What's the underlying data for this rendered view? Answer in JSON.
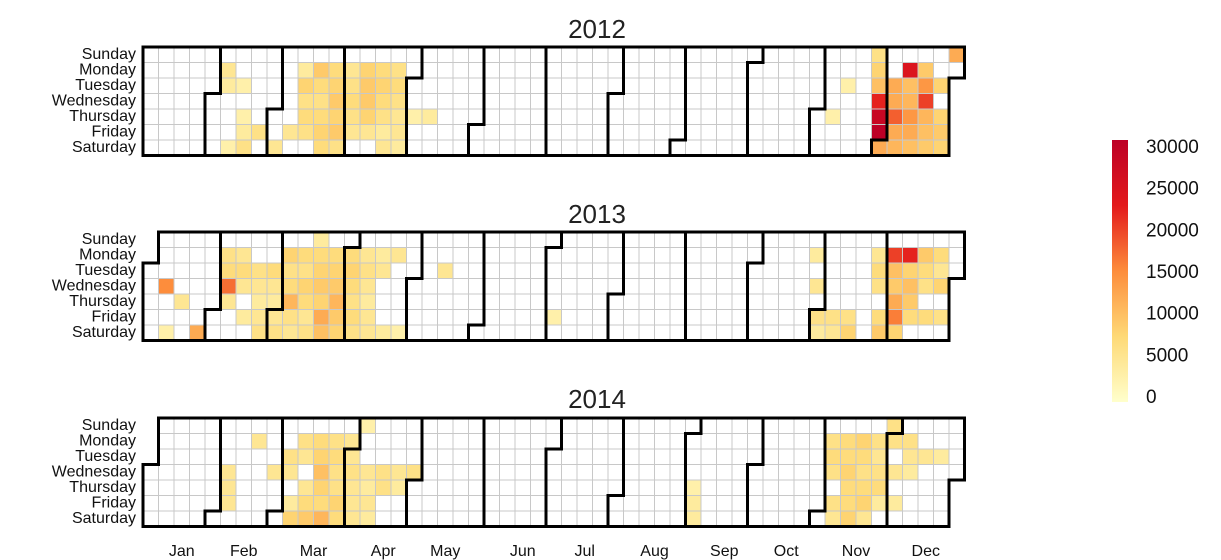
{
  "chart_data": {
    "type": "heatmap",
    "subtype": "calendar",
    "weekdays": [
      "Sunday",
      "Monday",
      "Tuesday",
      "Wednesday",
      "Thursday",
      "Friday",
      "Saturday"
    ],
    "months": [
      "Jan",
      "Feb",
      "Mar",
      "Apr",
      "May",
      "Jun",
      "Jul",
      "Aug",
      "Sep",
      "Oct",
      "Nov",
      "Dec"
    ],
    "legend": {
      "position": "right",
      "min": 0,
      "max": 30000,
      "ticks": [
        "30000",
        "25000",
        "20000",
        "15000",
        "10000",
        "5000",
        "0"
      ],
      "colors": [
        "#ffffcc",
        "#fed976",
        "#fd8d3c",
        "#e31a1c",
        "#bd0026"
      ]
    },
    "years": [
      {
        "title": "2012",
        "year": 2012,
        "values": {
          "2012-02-06": 5000,
          "2012-02-07": 4000,
          "2012-02-14": 3000,
          "2012-02-16": 3000,
          "2012-02-17": 4000,
          "2012-02-18": 6000,
          "2012-02-11": 3000,
          "2012-02-24": 6000,
          "2012-03-03": 5000,
          "2012-03-09": 5000,
          "2012-03-12": 4000,
          "2012-03-13": 8000,
          "2012-03-14": 6000,
          "2012-03-15": 7000,
          "2012-03-16": 6000,
          "2012-03-19": 9000,
          "2012-03-20": 7000,
          "2012-03-21": 6000,
          "2012-03-22": 7000,
          "2012-03-23": 8000,
          "2012-03-24": 7000,
          "2012-03-26": 7000,
          "2012-03-27": 8000,
          "2012-03-28": 9000,
          "2012-03-29": 8000,
          "2012-03-30": 9000,
          "2012-03-31": 6000,
          "2012-04-02": 5000,
          "2012-04-03": 6000,
          "2012-04-04": 7000,
          "2012-04-05": 6000,
          "2012-04-06": 5000,
          "2012-04-09": 8000,
          "2012-04-10": 9000,
          "2012-04-11": 9000,
          "2012-04-12": 8000,
          "2012-04-13": 5000,
          "2012-04-16": 7000,
          "2012-04-17": 8000,
          "2012-04-18": 7000,
          "2012-04-19": 6000,
          "2012-04-20": 4000,
          "2012-04-21": 5000,
          "2012-04-23": 6000,
          "2012-04-24": 7000,
          "2012-04-25": 6000,
          "2012-04-26": 5000,
          "2012-04-27": 5000,
          "2012-04-28": 4000,
          "2012-05-03": 3000,
          "2012-05-10": 4000,
          "2012-11-13": 3000,
          "2012-11-08": 3000,
          "2012-11-25": 6000,
          "2012-11-26": 8000,
          "2012-11-27": 10000,
          "2012-11-28": 22000,
          "2012-11-29": 28000,
          "2012-11-30": 30000,
          "2012-12-01": 12000,
          "2012-12-04": 12000,
          "2012-12-05": 12000,
          "2012-12-06": 18000,
          "2012-12-07": 12000,
          "2012-12-08": 11000,
          "2012-12-10": 24000,
          "2012-12-11": 10000,
          "2012-12-12": 11000,
          "2012-12-13": 14000,
          "2012-12-14": 12000,
          "2012-12-15": 10000,
          "2012-12-17": 9000,
          "2012-12-18": 14000,
          "2012-12-19": 20000,
          "2012-12-20": 11000,
          "2012-12-21": 10000,
          "2012-12-22": 9000,
          "2012-12-25": 8000,
          "2012-12-27": 8000,
          "2012-12-28": 9000,
          "2012-12-29": 8000,
          "2012-12-30": 12000
        }
      },
      {
        "title": "2013",
        "year": 2013,
        "values": {
          "2013-01-09": 15000,
          "2013-01-17": 5000,
          "2013-01-12": 3000,
          "2013-01-26": 12000,
          "2013-02-04": 6000,
          "2013-02-05": 7000,
          "2013-02-06": 17000,
          "2013-02-07": 5000,
          "2013-02-11": 5000,
          "2013-02-12": 7000,
          "2013-02-13": 5000,
          "2013-02-15": 4000,
          "2013-02-19": 6000,
          "2013-02-20": 5000,
          "2013-02-21": 4000,
          "2013-02-22": 5000,
          "2013-02-23": 6000,
          "2013-02-26": 7000,
          "2013-02-27": 5000,
          "2013-02-28": 4000,
          "2013-03-01": 5000,
          "2013-03-02": 6000,
          "2013-03-04": 8000,
          "2013-03-05": 6000,
          "2013-03-06": 7000,
          "2013-03-07": 11000,
          "2013-03-08": 6000,
          "2013-03-09": 5000,
          "2013-03-11": 7000,
          "2013-03-12": 6000,
          "2013-03-13": 8000,
          "2013-03-14": 7000,
          "2013-03-15": 5000,
          "2013-03-16": 6000,
          "2013-03-17": 4000,
          "2013-03-18": 7000,
          "2013-03-19": 8000,
          "2013-03-20": 9000,
          "2013-03-21": 8000,
          "2013-03-22": 12000,
          "2013-03-23": 10000,
          "2013-03-25": 7000,
          "2013-03-26": 8000,
          "2013-03-27": 9000,
          "2013-03-28": 11000,
          "2013-03-29": 9000,
          "2013-03-30": 8000,
          "2013-04-01": 7000,
          "2013-04-02": 8000,
          "2013-04-03": 7000,
          "2013-04-04": 6000,
          "2013-04-05": 7000,
          "2013-04-06": 6000,
          "2013-04-08": 5000,
          "2013-04-09": 6000,
          "2013-04-10": 5000,
          "2013-04-11": 4000,
          "2013-04-12": 5000,
          "2013-04-13": 5000,
          "2013-04-15": 4000,
          "2013-04-16": 5000,
          "2013-04-20": 4000,
          "2013-04-22": 5000,
          "2013-04-27": 3000,
          "2013-05-14": 5000,
          "2013-07-05": 3000,
          "2013-10-28": 4000,
          "2013-10-30": 5000,
          "2013-11-01": 6000,
          "2013-11-02": 4000,
          "2013-11-08": 6000,
          "2013-11-09": 5000,
          "2013-11-16": 8000,
          "2013-11-15": 6000,
          "2013-11-25": 5000,
          "2013-11-26": 7000,
          "2013-11-27": 6000,
          "2013-11-29": 7000,
          "2013-11-30": 9000,
          "2013-12-02": 20000,
          "2013-12-03": 10000,
          "2013-12-04": 9000,
          "2013-12-05": 12000,
          "2013-12-06": 16000,
          "2013-12-07": 8000,
          "2013-12-09": 22000,
          "2013-12-10": 8000,
          "2013-12-11": 10000,
          "2013-12-12": 9000,
          "2013-12-13": 7000,
          "2013-12-16": 9000,
          "2013-12-17": 7000,
          "2013-12-18": 6000,
          "2013-12-20": 7000,
          "2013-12-23": 7000,
          "2013-12-24": 5000,
          "2013-12-25": 8000,
          "2013-12-27": 6000
        }
      },
      {
        "title": "2014",
        "year": 2014,
        "values": {
          "2014-02-05": 5000,
          "2014-02-06": 5000,
          "2014-02-07": 5000,
          "2014-02-17": 5000,
          "2014-02-26": 5000,
          "2014-03-04": 6000,
          "2014-03-05": 5000,
          "2014-03-07": 4000,
          "2014-03-08": 8000,
          "2014-03-10": 6000,
          "2014-03-11": 5000,
          "2014-03-13": 5000,
          "2014-03-14": 7000,
          "2014-03-15": 9000,
          "2014-03-17": 7000,
          "2014-03-18": 8000,
          "2014-03-19": 10000,
          "2014-03-20": 8000,
          "2014-03-21": 7000,
          "2014-03-22": 11000,
          "2014-03-24": 6000,
          "2014-03-25": 7000,
          "2014-03-26": 6000,
          "2014-03-27": 6000,
          "2014-03-28": 8000,
          "2014-03-29": 7000,
          "2014-03-31": 5000,
          "2014-04-01": 5000,
          "2014-04-02": 6000,
          "2014-04-03": 5000,
          "2014-04-04": 5000,
          "2014-04-05": 5000,
          "2014-04-06": 3000,
          "2014-04-09": 5000,
          "2014-04-10": 4000,
          "2014-04-11": 5000,
          "2014-04-12": 4000,
          "2014-04-16": 6000,
          "2014-04-17": 6000,
          "2014-04-23": 5000,
          "2014-04-24": 4000,
          "2014-04-30": 6000,
          "2014-09-05": 4000,
          "2014-09-06": 4000,
          "2014-09-04": 3000,
          "2014-11-03": 6000,
          "2014-11-04": 7000,
          "2014-11-05": 6000,
          "2014-11-07": 6000,
          "2014-11-08": 5000,
          "2014-11-10": 7000,
          "2014-11-11": 7000,
          "2014-11-12": 8000,
          "2014-11-13": 7000,
          "2014-11-14": 7000,
          "2014-11-15": 8000,
          "2014-11-17": 8000,
          "2014-11-18": 7000,
          "2014-11-19": 6000,
          "2014-11-20": 7000,
          "2014-11-21": 8000,
          "2014-11-22": 5000,
          "2014-11-24": 6000,
          "2014-11-25": 5000,
          "2014-11-26": 6000,
          "2014-11-27": 7000,
          "2014-11-28": 4000,
          "2014-11-30": 6000,
          "2014-12-01": 6000,
          "2014-12-03": 5000,
          "2014-12-05": 4000,
          "2014-12-08": 6000,
          "2014-12-09": 5000,
          "2014-12-10": 4000,
          "2014-12-16": 5000,
          "2014-12-23": 4000
        }
      }
    ]
  }
}
